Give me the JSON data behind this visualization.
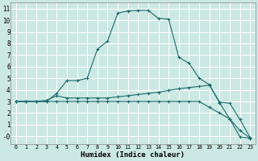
{
  "xlabel": "Humidex (Indice chaleur)",
  "background_color": "#cce8e4",
  "grid_color": "#ffffff",
  "line_color": "#1a6b6b",
  "xlim": [
    -0.5,
    23.5
  ],
  "ylim": [
    -0.7,
    11.5
  ],
  "ytick_vals": [
    0,
    1,
    2,
    3,
    4,
    5,
    6,
    7,
    8,
    9,
    10,
    11
  ],
  "ytick_labels": [
    "-0",
    "1",
    "2",
    "3",
    "4",
    "5",
    "6",
    "7",
    "8",
    "9",
    "10",
    "11"
  ],
  "curve_big_x": [
    0,
    1,
    2,
    3,
    4,
    5,
    6,
    7,
    8,
    9,
    10,
    11,
    12,
    13,
    14,
    15,
    16,
    17,
    18,
    19,
    20,
    21,
    22,
    23
  ],
  "curve_big_y": [
    3,
    3,
    3,
    3,
    3.7,
    4.8,
    4.8,
    5.0,
    7.5,
    8.2,
    10.6,
    10.8,
    10.85,
    10.85,
    10.15,
    10.1,
    6.8,
    6.3,
    5.0,
    4.45,
    2.9,
    1.5,
    -0.05,
    -0.15
  ],
  "curve_mid_x": [
    0,
    1,
    2,
    3,
    4,
    5,
    6,
    7,
    8,
    9,
    10,
    11,
    12,
    13,
    14,
    15,
    16,
    17,
    18,
    19,
    20,
    21,
    22,
    23
  ],
  "curve_mid_y": [
    3,
    3,
    3,
    3.1,
    3.5,
    3.3,
    3.3,
    3.3,
    3.3,
    3.3,
    3.4,
    3.5,
    3.6,
    3.7,
    3.8,
    3.95,
    4.1,
    4.2,
    4.3,
    4.4,
    2.95,
    2.85,
    1.45,
    -0.1
  ],
  "curve_low_x": [
    0,
    1,
    2,
    3,
    4,
    5,
    6,
    7,
    8,
    9,
    10,
    11,
    12,
    13,
    14,
    15,
    16,
    17,
    18,
    19,
    20,
    21,
    22,
    23
  ],
  "curve_low_y": [
    3,
    3,
    3,
    3,
    3,
    3,
    3,
    3,
    3,
    3,
    3,
    3,
    3,
    3,
    3,
    3,
    3,
    3,
    3,
    2.5,
    2.0,
    1.5,
    0.5,
    -0.15
  ]
}
